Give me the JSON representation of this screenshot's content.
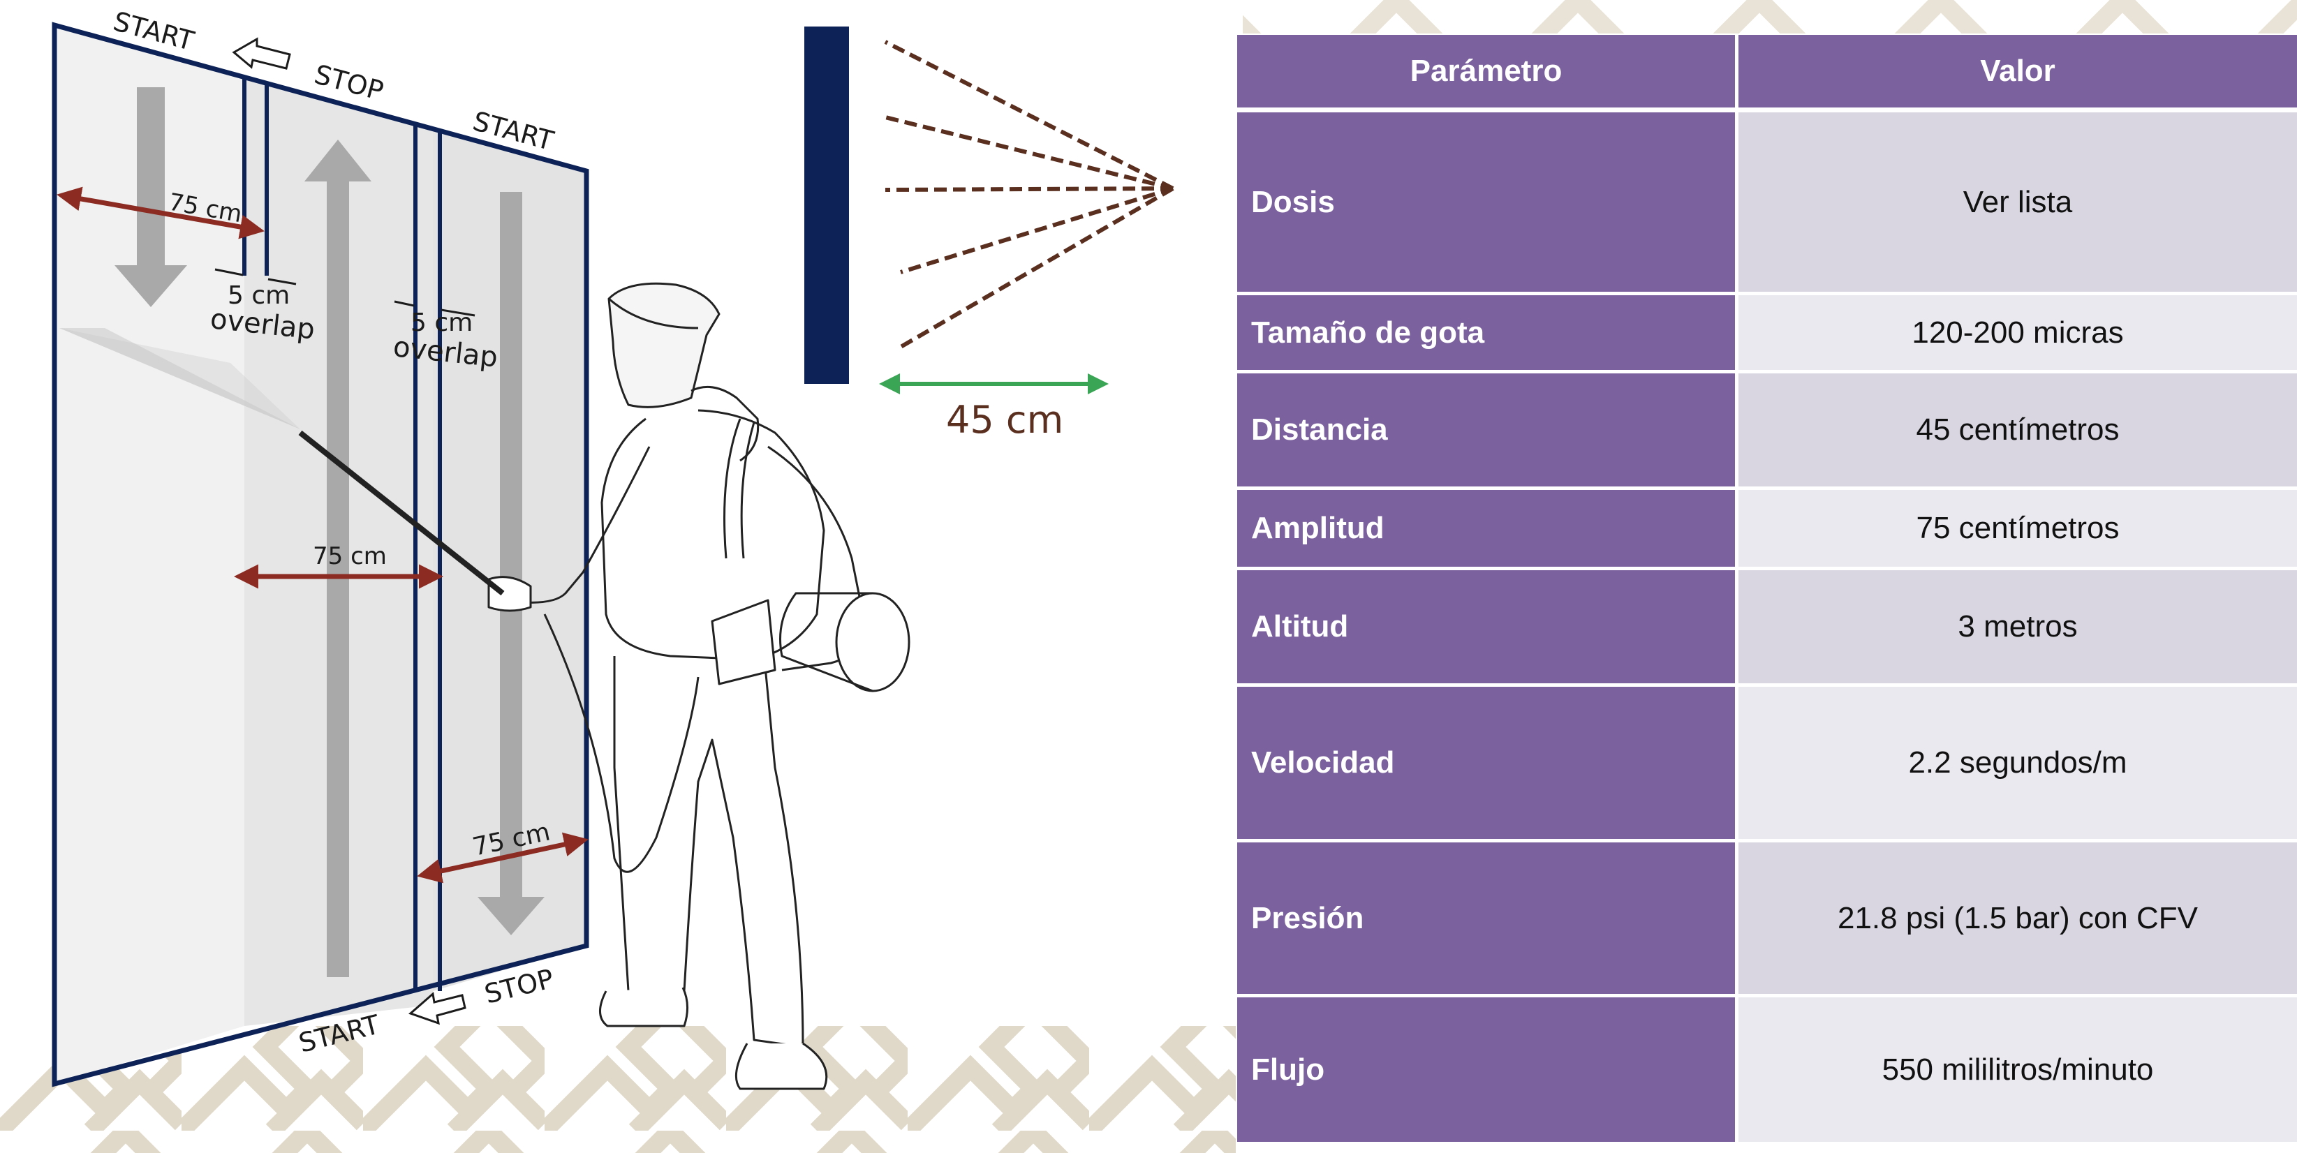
{
  "figure": {
    "labels": {
      "start_top_left": "START",
      "stop_top": "STOP",
      "start_top_right": "START",
      "start_bottom": "START",
      "stop_bottom": "STOP",
      "width_top": "75 cm",
      "width_middle": "75 cm",
      "width_bottom": "75 cm",
      "overlap_1_size": "5 cm",
      "overlap_1_word": "overlap",
      "overlap_2_size": "5 cm",
      "overlap_2_word": "overlap"
    },
    "distance_label": "45 cm"
  },
  "table": {
    "headers": [
      "Parámetro",
      "Valor"
    ],
    "rows": [
      {
        "param": "Dosis",
        "value": "Ver lista"
      },
      {
        "param": "Tamaño de gota",
        "value": "120-200 micras"
      },
      {
        "param": "Distancia",
        "value": "45 centímetros"
      },
      {
        "param": "Amplitud",
        "value": "75 centímetros"
      },
      {
        "param": "Altitud",
        "value": "3 metros"
      },
      {
        "param": "Velocidad",
        "value": "2.2 segundos/m"
      },
      {
        "param": "Presión",
        "value": "21.8 psi (1.5 bar) con CFV"
      },
      {
        "param": "Flujo",
        "value": "550 mililitros/minuto"
      }
    ]
  },
  "colors": {
    "table_header": "#7b619d",
    "row_odd": "#d9d6e1",
    "row_even": "#ebe9f0",
    "wall_frame": "#0d2257",
    "width_arrows": "#8b2b22",
    "distance_arrow": "#3aa655",
    "spray_lines": "#5a2f1f",
    "fret_pattern": "#d8d0bb"
  }
}
